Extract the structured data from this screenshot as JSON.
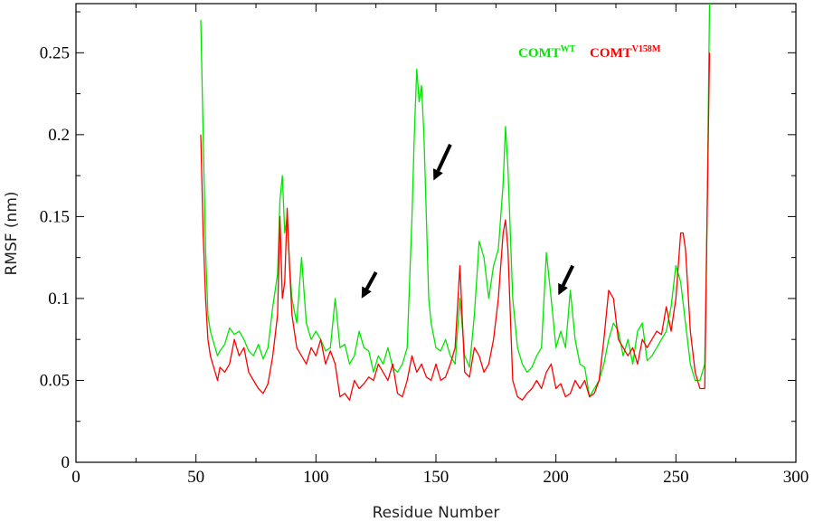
{
  "chart_data": {
    "type": "line",
    "xlabel": "Residue Number",
    "ylabel": "RMSF (nm)",
    "xlim": [
      0,
      300
    ],
    "ylim": [
      0,
      0.28
    ],
    "xticks": [
      0,
      50,
      100,
      150,
      200,
      250,
      300
    ],
    "yticks": [
      0,
      0.05,
      0.1,
      0.15,
      0.2,
      0.25
    ],
    "ytick_labels": [
      "0",
      "0.05",
      "0.1",
      "0.15",
      "0.2",
      "0.25"
    ],
    "grid": false,
    "legend": {
      "placement": "top-right",
      "entries": [
        {
          "base": "COMT",
          "sup": "WT",
          "color": "#00e600"
        },
        {
          "base": "COMT",
          "sup": "V158M",
          "color": "#ff0000"
        }
      ]
    },
    "series": [
      {
        "name": "COMT WT",
        "color": "#00e600",
        "x": [
          52,
          53,
          54,
          55,
          56,
          57,
          58,
          59,
          60,
          62,
          64,
          66,
          68,
          70,
          72,
          74,
          76,
          78,
          80,
          82,
          84,
          85,
          86,
          87,
          88,
          89,
          90,
          92,
          94,
          96,
          98,
          100,
          102,
          104,
          106,
          108,
          110,
          112,
          114,
          116,
          118,
          120,
          122,
          124,
          126,
          128,
          130,
          132,
          134,
          136,
          138,
          140,
          141,
          142,
          143,
          144,
          145,
          146,
          147,
          148,
          150,
          152,
          154,
          156,
          158,
          160,
          162,
          164,
          166,
          168,
          170,
          172,
          174,
          176,
          178,
          179,
          180,
          182,
          184,
          186,
          188,
          190,
          192,
          194,
          196,
          198,
          200,
          202,
          204,
          206,
          208,
          210,
          212,
          214,
          216,
          218,
          220,
          222,
          224,
          226,
          228,
          230,
          232,
          234,
          236,
          238,
          240,
          242,
          244,
          246,
          248,
          250,
          252,
          254,
          256,
          258,
          260,
          262,
          263,
          264
        ],
        "values": [
          0.27,
          0.2,
          0.13,
          0.09,
          0.08,
          0.075,
          0.07,
          0.065,
          0.068,
          0.072,
          0.082,
          0.078,
          0.08,
          0.075,
          0.068,
          0.065,
          0.072,
          0.063,
          0.07,
          0.095,
          0.115,
          0.16,
          0.175,
          0.14,
          0.15,
          0.12,
          0.1,
          0.085,
          0.125,
          0.085,
          0.075,
          0.08,
          0.075,
          0.068,
          0.07,
          0.1,
          0.07,
          0.072,
          0.06,
          0.065,
          0.08,
          0.07,
          0.068,
          0.055,
          0.065,
          0.06,
          0.07,
          0.058,
          0.055,
          0.06,
          0.07,
          0.15,
          0.2,
          0.24,
          0.22,
          0.23,
          0.2,
          0.15,
          0.1,
          0.085,
          0.07,
          0.068,
          0.075,
          0.065,
          0.06,
          0.1,
          0.065,
          0.058,
          0.09,
          0.135,
          0.125,
          0.1,
          0.12,
          0.13,
          0.17,
          0.205,
          0.18,
          0.1,
          0.07,
          0.06,
          0.055,
          0.058,
          0.065,
          0.07,
          0.128,
          0.1,
          0.07,
          0.08,
          0.07,
          0.105,
          0.075,
          0.06,
          0.058,
          0.04,
          0.045,
          0.05,
          0.06,
          0.075,
          0.085,
          0.08,
          0.065,
          0.075,
          0.06,
          0.08,
          0.085,
          0.062,
          0.065,
          0.07,
          0.075,
          0.08,
          0.095,
          0.12,
          0.11,
          0.085,
          0.06,
          0.05,
          0.05,
          0.06,
          0.15,
          0.28
        ]
      },
      {
        "name": "COMT V158M",
        "color": "#ff0000",
        "x": [
          52,
          53,
          54,
          55,
          56,
          57,
          58,
          59,
          60,
          62,
          64,
          66,
          68,
          70,
          72,
          74,
          76,
          78,
          80,
          82,
          84,
          85,
          86,
          87,
          88,
          89,
          90,
          92,
          94,
          96,
          98,
          100,
          102,
          104,
          106,
          108,
          110,
          112,
          114,
          116,
          118,
          120,
          122,
          124,
          126,
          128,
          130,
          132,
          134,
          136,
          138,
          140,
          142,
          144,
          146,
          148,
          150,
          152,
          154,
          156,
          158,
          160,
          162,
          164,
          166,
          168,
          170,
          172,
          174,
          176,
          178,
          179,
          180,
          182,
          184,
          186,
          188,
          190,
          192,
          194,
          196,
          198,
          200,
          202,
          204,
          206,
          208,
          210,
          212,
          214,
          216,
          218,
          220,
          222,
          224,
          226,
          228,
          230,
          232,
          234,
          236,
          238,
          240,
          242,
          244,
          246,
          248,
          250,
          252,
          253,
          254,
          256,
          258,
          260,
          262,
          263,
          264
        ],
        "values": [
          0.2,
          0.14,
          0.1,
          0.075,
          0.065,
          0.06,
          0.055,
          0.05,
          0.058,
          0.055,
          0.06,
          0.075,
          0.065,
          0.07,
          0.055,
          0.05,
          0.045,
          0.042,
          0.048,
          0.065,
          0.09,
          0.15,
          0.1,
          0.11,
          0.155,
          0.12,
          0.09,
          0.07,
          0.065,
          0.06,
          0.07,
          0.065,
          0.075,
          0.06,
          0.068,
          0.06,
          0.04,
          0.042,
          0.038,
          0.05,
          0.045,
          0.048,
          0.052,
          0.05,
          0.06,
          0.055,
          0.05,
          0.06,
          0.042,
          0.04,
          0.05,
          0.065,
          0.055,
          0.06,
          0.052,
          0.05,
          0.06,
          0.05,
          0.052,
          0.06,
          0.07,
          0.12,
          0.055,
          0.052,
          0.07,
          0.065,
          0.055,
          0.06,
          0.075,
          0.1,
          0.14,
          0.148,
          0.13,
          0.05,
          0.04,
          0.038,
          0.042,
          0.045,
          0.05,
          0.045,
          0.055,
          0.06,
          0.045,
          0.048,
          0.04,
          0.042,
          0.05,
          0.045,
          0.05,
          0.04,
          0.042,
          0.05,
          0.075,
          0.105,
          0.1,
          0.075,
          0.07,
          0.065,
          0.07,
          0.06,
          0.075,
          0.07,
          0.075,
          0.08,
          0.078,
          0.095,
          0.08,
          0.1,
          0.14,
          0.14,
          0.13,
          0.08,
          0.055,
          0.045,
          0.045,
          0.15,
          0.25
        ]
      }
    ],
    "annotations": [
      {
        "type": "arrow",
        "from": [
          125,
          0.116
        ],
        "to": [
          119,
          0.1
        ],
        "color": "#000000"
      },
      {
        "type": "arrow",
        "from": [
          156,
          0.194
        ],
        "to": [
          149,
          0.172
        ],
        "color": "#000000"
      },
      {
        "type": "arrow",
        "from": [
          207,
          0.12
        ],
        "to": [
          201,
          0.102
        ],
        "color": "#000000"
      }
    ]
  }
}
